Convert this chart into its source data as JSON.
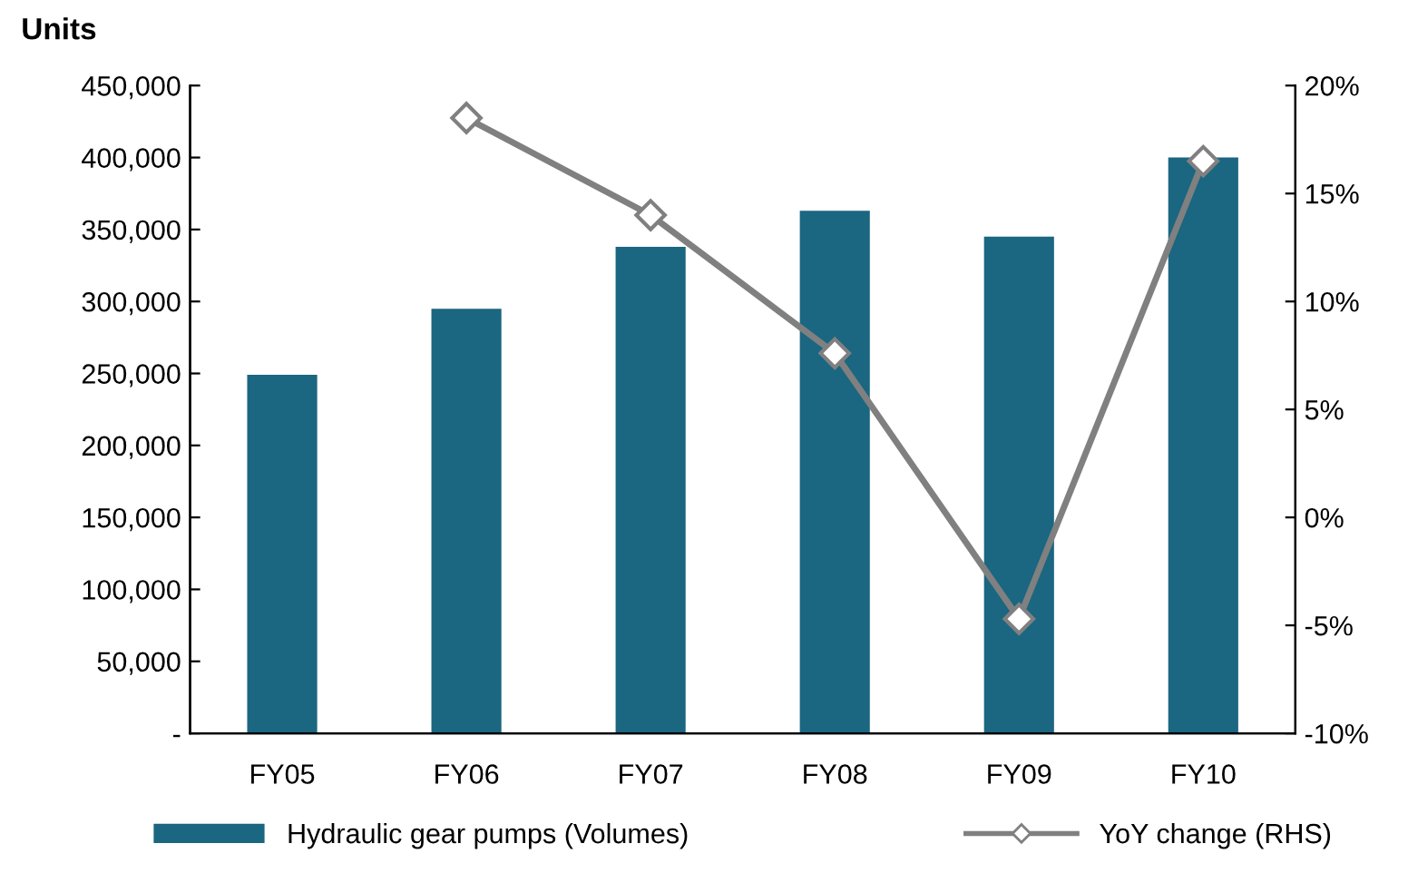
{
  "chart_data": {
    "type": "bar",
    "ylabel": "Units",
    "categories": [
      "FY05",
      "FY06",
      "FY07",
      "FY08",
      "FY09",
      "FY10"
    ],
    "series": [
      {
        "name": "Hydraulic gear pumps (Volumes)",
        "color": "#1b6680",
        "values": [
          249000,
          295000,
          338000,
          363000,
          345000,
          400000
        ]
      },
      {
        "name": "YoY change (RHS)",
        "type": "line",
        "axis": "y2",
        "color": "#808080",
        "marker": "diamond",
        "values": [
          null,
          18.5,
          14.0,
          7.6,
          -4.7,
          16.5
        ]
      }
    ],
    "ylim": [
      0,
      450000
    ],
    "yticks": [
      {
        "value": 0,
        "label": "-"
      },
      {
        "value": 50000,
        "label": "50,000"
      },
      {
        "value": 100000,
        "label": "100,000"
      },
      {
        "value": 150000,
        "label": "150,000"
      },
      {
        "value": 200000,
        "label": "200,000"
      },
      {
        "value": 250000,
        "label": "250,000"
      },
      {
        "value": 300000,
        "label": "300,000"
      },
      {
        "value": 350000,
        "label": "350,000"
      },
      {
        "value": 400000,
        "label": "400,000"
      },
      {
        "value": 450000,
        "label": "450,000"
      }
    ],
    "y2lim": [
      -10,
      20
    ],
    "y2ticks": [
      {
        "value": -10,
        "label": "-10%"
      },
      {
        "value": -5,
        "label": "-5%"
      },
      {
        "value": 0,
        "label": "0%"
      },
      {
        "value": 5,
        "label": "5%"
      },
      {
        "value": 10,
        "label": "10%"
      },
      {
        "value": 15,
        "label": "15%"
      },
      {
        "value": 20,
        "label": "20%"
      }
    ],
    "legend": "bottom",
    "grid": false
  }
}
